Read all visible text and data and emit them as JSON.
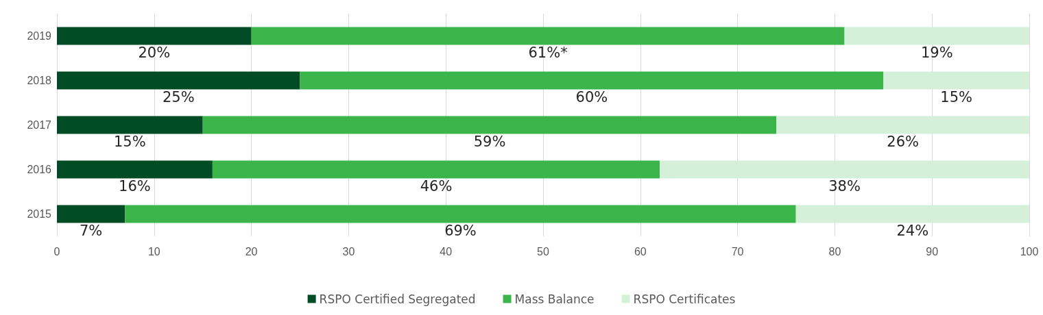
{
  "chart_data": {
    "type": "bar",
    "orientation": "horizontal",
    "stacked": true,
    "categories": [
      "2019",
      "2018",
      "2017",
      "2016",
      "2015"
    ],
    "series": [
      {
        "name": "RSPO Certified Segregated",
        "color": "#004d25",
        "values": [
          20,
          25,
          15,
          16,
          7
        ],
        "value_labels": [
          "20%",
          "25%",
          "15%",
          "16%",
          "7%"
        ]
      },
      {
        "name": "Mass Balance",
        "color": "#3bb54a",
        "values": [
          61,
          60,
          59,
          46,
          69
        ],
        "value_labels": [
          "61%*",
          "60%",
          "59%",
          "46%",
          "69%"
        ]
      },
      {
        "name": "RSPO Certificates",
        "color": "#d5f0d9",
        "values": [
          19,
          15,
          26,
          38,
          24
        ],
        "value_labels": [
          "19%",
          "15%",
          "26%",
          "38%",
          "24%"
        ]
      }
    ],
    "xlim": [
      0,
      100
    ],
    "xticks": [
      0,
      10,
      20,
      30,
      40,
      50,
      60,
      70,
      80,
      90,
      100
    ],
    "grid": "x",
    "legend": "bottom"
  }
}
